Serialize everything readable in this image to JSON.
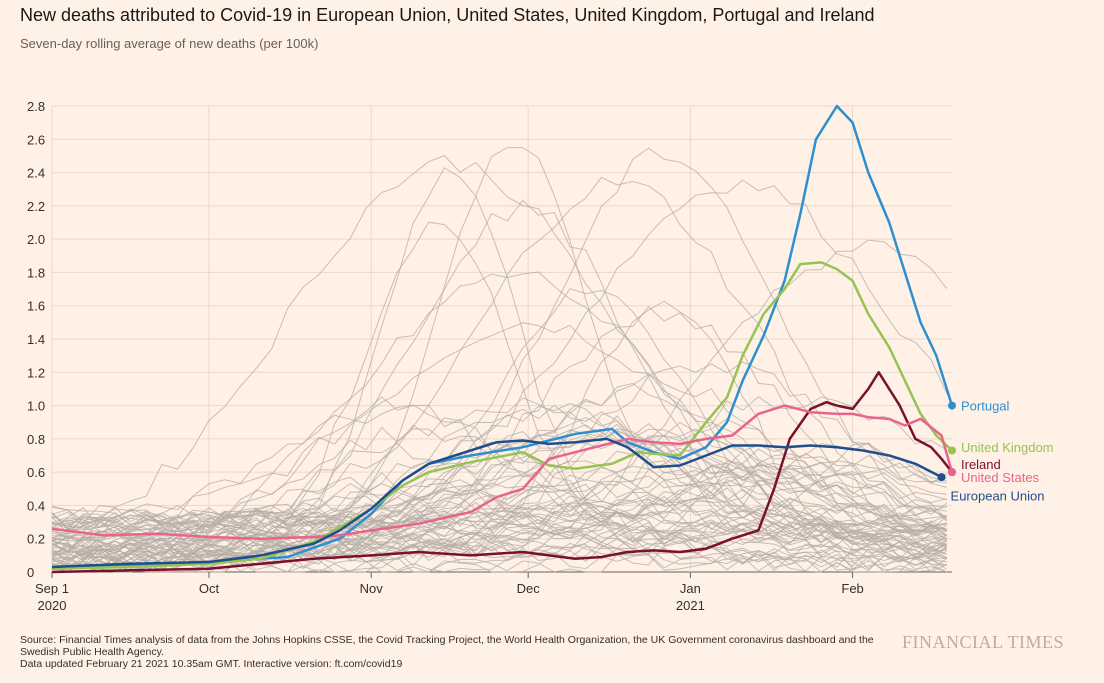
{
  "header": {
    "title": "New deaths attributed to Covid-19 in European Union, United States, United Kingdom, Portugal and Ireland",
    "subtitle": "Seven-day rolling average of new deaths (per 100k)"
  },
  "footer": {
    "source": "Source: Financial Times analysis of data from the Johns Hopkins CSSE, the Covid Tracking Project, the World Health Organization, the UK Government coronavirus dashboard and the Swedish Public Health Agency.",
    "updated": "Data updated February 21 2021 10.35am GMT. Interactive version: ft.com/covid19",
    "logo": "FINANCIAL TIMES"
  },
  "colors": {
    "background": "#fff1e5",
    "grid": "#e6d9ce",
    "background_lines": "#b4aca6",
    "portugal": "#2e8fd0",
    "united_kingdom": "#96c353",
    "ireland": "#7a0f2e",
    "united_states": "#e8648e",
    "european_union": "#1f4e8c"
  },
  "chart_data": {
    "type": "line",
    "title": "New deaths attributed to Covid-19 in European Union, United States, United Kingdom, Portugal and Ireland",
    "ylabel": "Seven-day rolling average of new deaths (per 100k)",
    "xlabel": "",
    "x_unit": "days since 2020-09-01",
    "xlim": [
      0,
      172
    ],
    "ylim": [
      0,
      2.8
    ],
    "y_ticks": [
      0,
      0.2,
      0.4,
      0.6,
      0.8,
      1.0,
      1.2,
      1.4,
      1.6,
      1.8,
      2.0,
      2.2,
      2.4,
      2.6,
      2.8
    ],
    "y_tick_labels": [
      "0",
      "0.2",
      "0.4",
      "0.6",
      "0.8",
      "1.0",
      "1.2",
      "1.4",
      "1.6",
      "1.8",
      "2.0",
      "2.2",
      "2.4",
      "2.6",
      "2.8"
    ],
    "x_ticks": [
      {
        "x": 0,
        "label": "Sep 1",
        "sublabel": "2020"
      },
      {
        "x": 30,
        "label": "Oct",
        "sublabel": ""
      },
      {
        "x": 61,
        "label": "Nov",
        "sublabel": ""
      },
      {
        "x": 91,
        "label": "Dec",
        "sublabel": ""
      },
      {
        "x": 122,
        "label": "Jan",
        "sublabel": "2021"
      },
      {
        "x": 153,
        "label": "Feb",
        "sublabel": ""
      }
    ],
    "grid": true,
    "series": [
      {
        "name": "Portugal",
        "key": "portugal",
        "label_y": 1.0,
        "x": [
          0,
          15,
          30,
          45,
          55,
          61,
          67,
          72,
          80,
          90,
          95,
          100,
          107,
          110,
          115,
          120,
          125,
          129,
          132,
          136,
          140,
          143,
          146,
          150,
          153,
          156,
          160,
          163,
          166,
          169,
          172
        ],
        "y": [
          0.02,
          0.04,
          0.06,
          0.09,
          0.2,
          0.35,
          0.55,
          0.65,
          0.7,
          0.75,
          0.79,
          0.83,
          0.86,
          0.78,
          0.72,
          0.68,
          0.75,
          0.9,
          1.15,
          1.42,
          1.75,
          2.15,
          2.6,
          2.8,
          2.7,
          2.4,
          2.1,
          1.8,
          1.5,
          1.3,
          1.0
        ]
      },
      {
        "name": "United Kingdom",
        "key": "united_kingdom",
        "label_y": 0.75,
        "x": [
          0,
          15,
          30,
          40,
          50,
          55,
          61,
          67,
          72,
          80,
          90,
          95,
          100,
          107,
          112,
          115,
          120,
          125,
          129,
          132,
          136,
          140,
          143,
          147,
          150,
          153,
          156,
          160,
          163,
          166,
          169,
          172
        ],
        "y": [
          0.02,
          0.03,
          0.05,
          0.08,
          0.18,
          0.27,
          0.38,
          0.52,
          0.6,
          0.66,
          0.72,
          0.64,
          0.62,
          0.65,
          0.72,
          0.71,
          0.7,
          0.9,
          1.05,
          1.3,
          1.55,
          1.7,
          1.85,
          1.86,
          1.82,
          1.75,
          1.55,
          1.35,
          1.15,
          0.95,
          0.82,
          0.73
        ]
      },
      {
        "name": "Ireland",
        "key": "ireland",
        "label_y": 0.65,
        "x": [
          0,
          15,
          30,
          40,
          50,
          61,
          70,
          80,
          90,
          95,
          100,
          105,
          110,
          115,
          120,
          125,
          130,
          135,
          138,
          141,
          145,
          148,
          150,
          153,
          156,
          158,
          160,
          162,
          165,
          168,
          170,
          172
        ],
        "y": [
          0.0,
          0.01,
          0.02,
          0.05,
          0.08,
          0.1,
          0.12,
          0.1,
          0.12,
          0.1,
          0.08,
          0.09,
          0.12,
          0.13,
          0.12,
          0.14,
          0.2,
          0.25,
          0.5,
          0.8,
          0.98,
          1.02,
          1.0,
          0.98,
          1.1,
          1.2,
          1.1,
          1.0,
          0.8,
          0.75,
          0.68,
          0.6
        ]
      },
      {
        "name": "United States",
        "key": "united_states",
        "label_y": 0.57,
        "x": [
          0,
          10,
          20,
          30,
          40,
          50,
          55,
          61,
          70,
          80,
          85,
          90,
          95,
          100,
          105,
          110,
          115,
          120,
          125,
          130,
          135,
          140,
          145,
          150,
          153,
          156,
          160,
          163,
          166,
          170,
          172
        ],
        "y": [
          0.26,
          0.22,
          0.23,
          0.21,
          0.2,
          0.21,
          0.22,
          0.25,
          0.29,
          0.36,
          0.45,
          0.5,
          0.68,
          0.72,
          0.76,
          0.8,
          0.78,
          0.77,
          0.8,
          0.82,
          0.95,
          1.0,
          0.96,
          0.95,
          0.95,
          0.93,
          0.92,
          0.88,
          0.92,
          0.82,
          0.6
        ]
      },
      {
        "name": "European Union",
        "key": "european_union",
        "label_y": 0.46,
        "x": [
          0,
          15,
          30,
          40,
          50,
          55,
          61,
          67,
          72,
          80,
          85,
          90,
          95,
          100,
          106,
          110,
          115,
          120,
          125,
          130,
          135,
          140,
          145,
          150,
          155,
          160,
          165,
          170
        ],
        "y": [
          0.03,
          0.05,
          0.06,
          0.1,
          0.17,
          0.25,
          0.38,
          0.55,
          0.65,
          0.73,
          0.78,
          0.79,
          0.77,
          0.78,
          0.8,
          0.75,
          0.63,
          0.64,
          0.7,
          0.76,
          0.76,
          0.75,
          0.76,
          0.75,
          0.73,
          0.7,
          0.65,
          0.57
        ]
      }
    ]
  }
}
